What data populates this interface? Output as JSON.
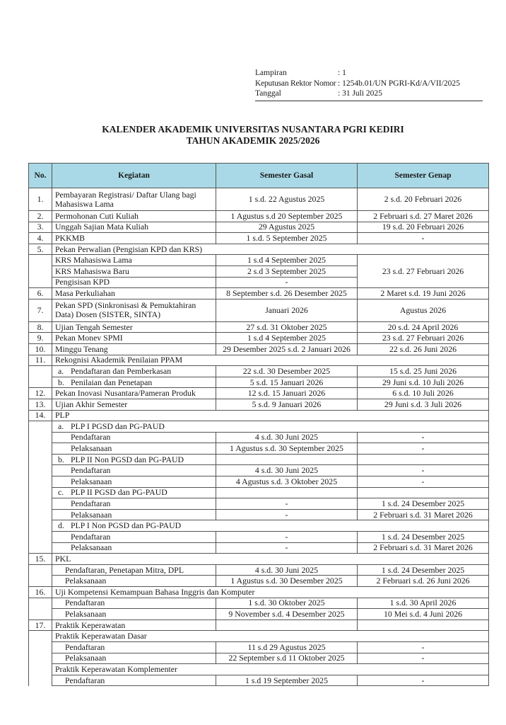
{
  "meta": {
    "lampiran_label": "Lampiran",
    "lampiran_value": ": 1",
    "nomor_label": "Keputusan Rektor Nomor",
    "nomor_value": ": 1254b.01/UN PGRI-Kd/A/VII/2025",
    "tanggal_label": "Tanggal",
    "tanggal_value": ":  31 Juli 2025"
  },
  "title": {
    "line1": "KALENDER AKADEMIK UNIVERSITAS NUSANTARA PGRI KEDIRI",
    "line2": "TAHUN AKADEMIK 2025/2026"
  },
  "colors": {
    "header_bg": "#a9d9e6"
  },
  "table": {
    "headers": [
      "No.",
      "Kegiatan",
      "Semester Gasal",
      "Semester Genap"
    ],
    "rows": [
      {
        "no": "1.",
        "kegiatan": "Pembayaran Registrasi/ Daftar Ulang bagi Mahasiswa Lama",
        "gasal": "1 s.d. 22 Agustus 2025",
        "genap": "2 s.d. 20 Februari 2026",
        "double": true
      },
      {
        "no": "2.",
        "kegiatan": "Permohonan Cuti Kuliah",
        "gasal": "1 Agustus s.d 20 September 2025",
        "genap": "2 Februari s.d. 27 Maret 2026"
      },
      {
        "no": "3.",
        "kegiatan": "Unggah Sajian Mata Kuliah",
        "gasal": "29 Agustus 2025",
        "genap": "19 s.d. 20 Februari 2026"
      },
      {
        "no": "4.",
        "kegiatan": "PKKMB",
        "gasal": "1 s.d. 5 September 2025",
        "genap": "-"
      },
      {
        "no": "5.",
        "kegiatan": "Pekan Perwalian (Pengisian KPD dan KRS)",
        "merged": true
      },
      {
        "kegiatan": "KRS Mahasiswa Lama",
        "gasal": "1 s.d 4 September 2025",
        "genap": "23 s.d. 27 Februari 2026",
        "genap_rows": 3
      },
      {
        "kegiatan": "KRS Mahasiswa Baru",
        "gasal": "2 s.d 3 September 2025",
        "genap_covered": true
      },
      {
        "kegiatan": "Pengisisan KPD",
        "gasal": "-",
        "genap_covered": true
      },
      {
        "no": "6.",
        "kegiatan": "Masa Perkuliahan",
        "gasal": "8 September s.d. 26 Desember 2025",
        "genap": "2 Maret s.d. 19 Juni 2026"
      },
      {
        "no": "7.",
        "kegiatan": "Pekan SPD (Sinkronisasi & Pemuktahiran Data) Dosen (SISTER, SINTA)",
        "gasal": "Januari 2026",
        "genap": "Agustus 2026",
        "double": true
      },
      {
        "no": "8.",
        "kegiatan": "Ujian Tengah Semester",
        "gasal": "27 s.d. 31 Oktober 2025",
        "genap": "20 s.d. 24 April 2026"
      },
      {
        "no": "9.",
        "kegiatan": "Pekan Monev SPMI",
        "gasal": "1 s.d 4 September 2025",
        "genap": "23 s.d. 27 Februari 2026"
      },
      {
        "no": "10.",
        "kegiatan": "Minggu Tenang",
        "gasal": "29 Desember 2025 s.d. 2 Januari 2026",
        "genap": "22 s.d. 26 Juni 2026"
      },
      {
        "no": "11.",
        "kegiatan": "Rekognisi Akademik Penilaian PPAM",
        "merged": true
      },
      {
        "label": "a.",
        "kegiatan": "Pendaftaran dan Pemberkasan",
        "gasal": "22 s.d. 30 Desember 2025",
        "genap": "15 s.d. 25 Juni 2026",
        "level": 1
      },
      {
        "label": "b.",
        "kegiatan": "Penilaian dan Penetapan",
        "gasal": "5 s.d. 15 Januari 2026",
        "genap": "29 Juni s.d. 10 Juli 2026",
        "level": 1
      },
      {
        "no": "12.",
        "kegiatan": "Pekan Inovasi Nusantara/Pameran Produk",
        "gasal": "12 s.d. 15 Januari 2026",
        "genap": "6  s.d. 10 Juli 2026"
      },
      {
        "no": "13.",
        "kegiatan": "Ujian Akhir Semester",
        "gasal": "5 s.d. 9 Januari 2026",
        "genap": "29 Juni s.d. 3 Juli 2026"
      },
      {
        "no": "14.",
        "kegiatan": "PLP",
        "merged": true
      },
      {
        "label": "a.",
        "kegiatan": "PLP I PGSD dan PG-PAUD",
        "level": 1,
        "merged": true
      },
      {
        "kegiatan": "Pendaftaran",
        "gasal": "4 s.d. 30 Juni 2025",
        "genap": "-",
        "level": 2
      },
      {
        "kegiatan": "Pelaksanaan",
        "gasal": "1 Agustus s.d. 30 September 2025",
        "genap": "-",
        "level": 2
      },
      {
        "label": "b.",
        "kegiatan": "PLP II Non PGSD dan PG-PAUD",
        "gasal": "",
        "genap": "",
        "level": 1
      },
      {
        "kegiatan": "Pendaftaran",
        "gasal": "4 s.d. 30 Juni 2025",
        "genap": "-",
        "level": 2
      },
      {
        "kegiatan": "Pelaksanaan",
        "gasal": "4 Agustus s.d. 3 Oktober 2025",
        "genap": "-",
        "level": 2
      },
      {
        "label": "c.",
        "kegiatan": "PLP II PGSD dan PG-PAUD",
        "gasal": "",
        "genap": "",
        "level": 1
      },
      {
        "kegiatan": "Pendaftaran",
        "gasal": "-",
        "genap": "1 s.d. 24 Desember 2025",
        "level": 2
      },
      {
        "kegiatan": "Pelaksanaan",
        "gasal": "-",
        "genap": "2 Februari s.d. 31 Maret 2026",
        "level": 2
      },
      {
        "label": "d.",
        "kegiatan": "PLP I Non PGSD dan PG-PAUD",
        "level": 1,
        "merged": true
      },
      {
        "kegiatan": "Pendaftaran",
        "gasal": "-",
        "genap": "1 s.d. 24 Desember 2025",
        "level": 2
      },
      {
        "kegiatan": "Pelaksanaan",
        "gasal": "-",
        "genap": "2 Februari s.d. 31 Maret 2026",
        "level": 2
      },
      {
        "no": "15.",
        "kegiatan": "PKL",
        "merged": true
      },
      {
        "kegiatan": "Pendaftaran, Penetapan Mitra, DPL",
        "gasal": "4 s.d. 30 Juni 2025",
        "genap": "1 s.d. 24 Desember 2025",
        "level": 3
      },
      {
        "kegiatan": "Pelaksanaan",
        "gasal": "1 Agustus s.d. 30 Desember 2025",
        "genap": "2 Februari s.d. 26 Juni 2026",
        "level": 3
      },
      {
        "no": "16.",
        "kegiatan": "Uji Kompetensi Kemampuan Bahasa Inggris dan Komputer",
        "merged": true
      },
      {
        "kegiatan": "Pendaftaran",
        "gasal": "1 s.d. 30 Oktober 2025",
        "genap": "1 s.d. 30 April 2026",
        "level": 3
      },
      {
        "kegiatan": "Pelaksanaan",
        "gasal": "9 November s.d. 4 Desember 2025",
        "genap": "10 Mei s.d. 4 Juni 2026",
        "level": 3
      },
      {
        "no": "17.",
        "kegiatan": "Praktik Keperawatan",
        "gasal": "",
        "genap": ""
      },
      {
        "kegiatan": "Praktik Keperawatan Dasar",
        "merged": true
      },
      {
        "kegiatan": "Pendaftaran",
        "gasal": "11 s.d 29 Agustus 2025",
        "genap": "-",
        "level": 3
      },
      {
        "kegiatan": "Pelaksanaan",
        "gasal": "22 September s.d 11 Oktober 2025",
        "genap": "-",
        "level": 3
      },
      {
        "kegiatan": "Praktik Keperawatan Komplementer",
        "merged": true
      },
      {
        "kegiatan": "Pendaftaran",
        "gasal": "1 s.d 19 September 2025",
        "genap": "-",
        "level": 3
      }
    ]
  }
}
